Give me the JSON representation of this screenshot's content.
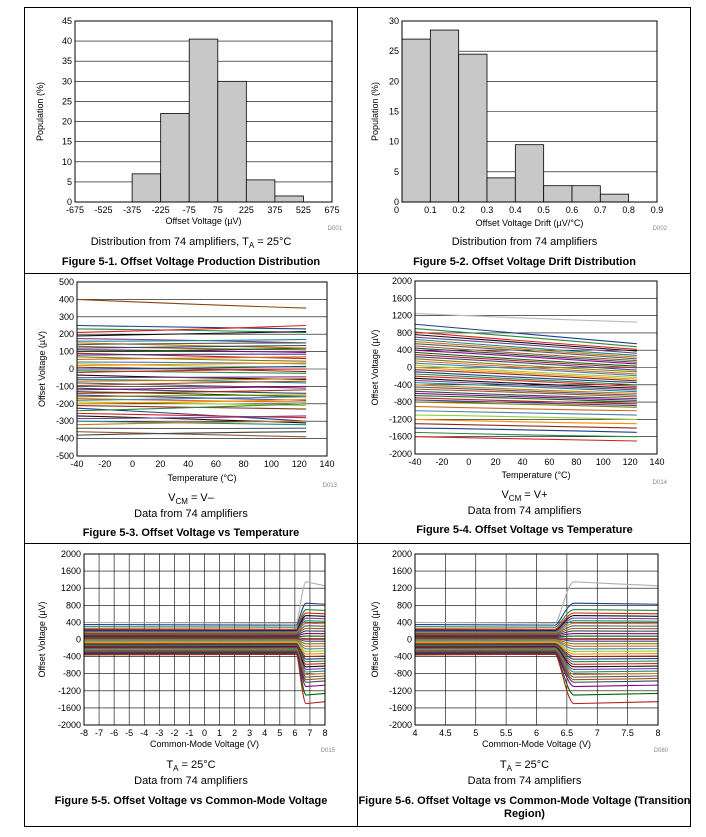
{
  "figures": [
    {
      "id": "f1",
      "caption_text": "Distribution from 74 amplifiers, ",
      "caption_sub": "A",
      "caption_pre": "T",
      "caption_post": " = 25°C",
      "title": "Figure 5-1. Offset Voltage Production Distribution"
    },
    {
      "id": "f2",
      "caption_line1": "Distribution from 74 amplifiers",
      "title": "Figure 5-2. Offset Voltage Drift Distribution"
    },
    {
      "id": "f3",
      "cond_pre": "V",
      "cond_sub": "CM",
      "cond_post": " = V–",
      "caption_line2": "Data from 74 amplifiers",
      "title": "Figure 5-3. Offset Voltage vs Temperature"
    },
    {
      "id": "f4",
      "cond_pre": "V",
      "cond_sub": "CM",
      "cond_post": " = V+",
      "caption_line2": "Data from 74 amplifiers",
      "title": "Figure 5-4. Offset Voltage vs Temperature"
    },
    {
      "id": "f5",
      "cond_pre": "T",
      "cond_sub": "A",
      "cond_post": " = 25°C",
      "caption_line2": "Data from 74 amplifiers",
      "title": "Figure 5-5. Offset Voltage vs Common-Mode Voltage"
    },
    {
      "id": "f6",
      "cond_pre": "T",
      "cond_sub": "A",
      "cond_post": " = 25°C",
      "caption_line2": "Data from 74 amplifiers",
      "title": "Figure 5-6. Offset Voltage vs Common-Mode Voltage (Transition Region)"
    }
  ],
  "chart_data": [
    {
      "type": "bar",
      "title": "Figure 5-1. Offset Voltage Production Distribution",
      "xlabel": "Offset Voltage (µV)",
      "ylabel": "Population (%)",
      "code": "D001",
      "xlim": [
        -675,
        675
      ],
      "ylim": [
        0,
        45
      ],
      "xticks": [
        "-675",
        "-525",
        "-375",
        "-225",
        "-75",
        "75",
        "225",
        "375",
        "525",
        "675"
      ],
      "yticks": [
        "0",
        "5",
        "10",
        "15",
        "20",
        "25",
        "30",
        "35",
        "40",
        "45"
      ],
      "bin_edges": [
        -675,
        -525,
        -375,
        -225,
        -75,
        75,
        225,
        375,
        525,
        675
      ],
      "values": [
        0,
        0,
        7,
        22,
        40.5,
        30,
        5.5,
        1.5,
        0
      ]
    },
    {
      "type": "bar",
      "title": "Figure 5-2. Offset Voltage Drift Distribution",
      "xlabel": "Offset Voltage Drift (µV/°C)",
      "ylabel": "Population (%)",
      "code": "D002",
      "xlim": [
        0,
        0.9
      ],
      "ylim": [
        0,
        30
      ],
      "xticks": [
        "0.1",
        "0.2",
        "0.3",
        "0.4",
        "0.5",
        "0.6",
        "0.7",
        "0.8",
        "0.9"
      ],
      "yticks": [
        "0",
        "5",
        "10",
        "15",
        "20",
        "25",
        "30"
      ],
      "bin_edges": [
        0,
        0.1,
        0.2,
        0.3,
        0.4,
        0.5,
        0.6,
        0.7,
        0.8
      ],
      "values": [
        27,
        28.5,
        24.5,
        4,
        9.5,
        2.7,
        2.7,
        1.3
      ]
    },
    {
      "type": "line",
      "title": "Figure 5-3. Offset Voltage vs Temperature",
      "xlabel": "Temperature (°C)",
      "ylabel": "Offset Voltage (µV)",
      "code": "D013",
      "xlim": [
        -40,
        140
      ],
      "ylim": [
        -500,
        500
      ],
      "xticks": [
        "-40",
        "-20",
        "0",
        "20",
        "40",
        "60",
        "80",
        "100",
        "120",
        "140"
      ],
      "yticks": [
        "-500",
        "-400",
        "-300",
        "-200",
        "-100",
        "0",
        "100",
        "200",
        "300",
        "400",
        "500"
      ],
      "x": [
        -40,
        125
      ],
      "series_start": [
        400,
        250,
        230,
        210,
        190,
        175,
        160,
        150,
        140,
        130,
        120,
        110,
        100,
        90,
        80,
        70,
        55,
        40,
        30,
        20,
        10,
        0,
        -10,
        -20,
        -35,
        -50,
        -60,
        -70,
        -80,
        -95,
        -110,
        -120,
        -130,
        -140,
        -150,
        -160,
        -170,
        -180,
        -190,
        -200,
        -210,
        -225,
        -240,
        -255,
        -270,
        -285,
        -300,
        -320,
        -340,
        -360,
        -380
      ],
      "series_end": [
        350,
        230,
        210,
        250,
        215,
        150,
        170,
        120,
        150,
        110,
        135,
        95,
        120,
        60,
        85,
        45,
        70,
        30,
        10,
        35,
        -15,
        15,
        -25,
        0,
        -60,
        -45,
        -80,
        -55,
        -110,
        -70,
        -140,
        -100,
        -160,
        -120,
        -180,
        -150,
        -190,
        -160,
        -210,
        -175,
        -230,
        -300,
        -200,
        -280,
        -310,
        -270,
        -320,
        -300,
        -340,
        -390,
        -360
      ]
    },
    {
      "type": "line",
      "title": "Figure 5-4. Offset Voltage vs Temperature",
      "xlabel": "Temperature (°C)",
      "ylabel": "Offset Voltage (µV)",
      "code": "D014",
      "xlim": [
        -40,
        140
      ],
      "ylim": [
        -2000,
        2000
      ],
      "xticks": [
        "-40",
        "-20",
        "0",
        "20",
        "40",
        "60",
        "80",
        "100",
        "120",
        "140"
      ],
      "yticks": [
        "-2000",
        "-1600",
        "-1200",
        "-800",
        "-400",
        "0",
        "400",
        "800",
        "1200",
        "1600",
        "2000"
      ],
      "x": [
        -40,
        125
      ],
      "series_start": [
        1250,
        1000,
        900,
        820,
        760,
        700,
        650,
        600,
        550,
        500,
        450,
        400,
        350,
        300,
        250,
        200,
        150,
        100,
        50,
        0,
        -50,
        -100,
        -150,
        -200,
        -250,
        -300,
        -350,
        -400,
        -450,
        -500,
        -550,
        -600,
        -650,
        -700,
        -750,
        -800,
        -900,
        -1000,
        -1100,
        -1200,
        -1300,
        -1400,
        -1500,
        -1600
      ],
      "series_end": [
        1050,
        550,
        480,
        420,
        380,
        330,
        280,
        240,
        200,
        160,
        120,
        80,
        30,
        -10,
        -60,
        -100,
        -150,
        -190,
        -230,
        -270,
        -310,
        -350,
        -400,
        -440,
        -480,
        -520,
        -560,
        -600,
        -640,
        -680,
        -720,
        -760,
        -800,
        -840,
        -880,
        -920,
        -1000,
        -1100,
        -1200,
        -1300,
        -1400,
        -1500,
        -1600,
        -1700
      ]
    },
    {
      "type": "line",
      "title": "Figure 5-5. Offset Voltage vs Common-Mode Voltage",
      "xlabel": "Common-Mode Voltage (V)",
      "ylabel": "Offset Voltage (µV)",
      "code": "D015",
      "xlim": [
        -8,
        8
      ],
      "ylim": [
        -2000,
        2000
      ],
      "xticks": [
        "-8",
        "-7",
        "-6",
        "-5",
        "-4",
        "-3",
        "-2",
        "-1",
        "0",
        "1",
        "2",
        "3",
        "4",
        "5",
        "6",
        "7",
        "8"
      ],
      "yticks": [
        "-2000",
        "-1600",
        "-1200",
        "-800",
        "-400",
        "0",
        "400",
        "800",
        "1200",
        "1600",
        "2000"
      ],
      "transition_x": 6.5,
      "series_low": [
        400,
        350,
        300,
        250,
        220,
        200,
        180,
        160,
        140,
        120,
        100,
        80,
        60,
        40,
        20,
        0,
        -20,
        -40,
        -60,
        -80,
        -100,
        -120,
        -140,
        -160,
        -180,
        -200,
        -220,
        -240,
        -260,
        -280,
        -300,
        -320,
        -340,
        -360
      ],
      "series_high": [
        1350,
        850,
        700,
        620,
        560,
        500,
        440,
        380,
        320,
        260,
        200,
        140,
        80,
        20,
        -40,
        -100,
        -160,
        -220,
        -280,
        -340,
        -400,
        -460,
        -520,
        -580,
        -640,
        -700,
        -760,
        -820,
        -880,
        -940,
        -1000,
        -1100,
        -1300,
        -1500
      ]
    },
    {
      "type": "line",
      "title": "Figure 5-6. Offset Voltage vs Common-Mode Voltage (Transition Region)",
      "xlabel": "Common-Mode Voltage (V)",
      "ylabel": "Offset Voltage (µV)",
      "code": "D080",
      "xlim": [
        4,
        8
      ],
      "ylim": [
        -2000,
        2000
      ],
      "xticks": [
        "4",
        "4.5",
        "5",
        "5.5",
        "6",
        "6.5",
        "7",
        "7.5",
        "8"
      ],
      "yticks": [
        "-2000",
        "-1600",
        "-1200",
        "-800",
        "-400",
        "0",
        "400",
        "800",
        "1200",
        "1600",
        "2000"
      ],
      "transition_x": 6.5,
      "series_low": [
        400,
        350,
        300,
        250,
        220,
        200,
        180,
        160,
        140,
        120,
        100,
        80,
        60,
        40,
        20,
        0,
        -20,
        -40,
        -60,
        -80,
        -100,
        -120,
        -140,
        -160,
        -180,
        -200,
        -220,
        -240,
        -260,
        -280,
        -300,
        -320,
        -340,
        -360
      ],
      "series_high": [
        1350,
        850,
        700,
        620,
        560,
        500,
        440,
        380,
        320,
        260,
        200,
        140,
        80,
        20,
        -40,
        -100,
        -160,
        -220,
        -280,
        -340,
        -400,
        -460,
        -520,
        -580,
        -640,
        -700,
        -760,
        -820,
        -880,
        -940,
        -1000,
        -1100,
        -1300,
        -1500
      ]
    }
  ],
  "colors": {
    "bar_fill": "#c8c8c8",
    "grid": "#000000",
    "palette": [
      "#8b2c1a",
      "#1e3f8c",
      "#2a8a3a",
      "#d41f1f",
      "#111111",
      "#7a3e8f",
      "#1a8a8a",
      "#c87a14",
      "#5a5a5a",
      "#a0522d",
      "#2f4f4f",
      "#8b008b",
      "#006400",
      "#b22222",
      "#483d8b",
      "#808000",
      "#d2691e",
      "#4682b4",
      "#9acd32",
      "#ff8c00"
    ]
  }
}
